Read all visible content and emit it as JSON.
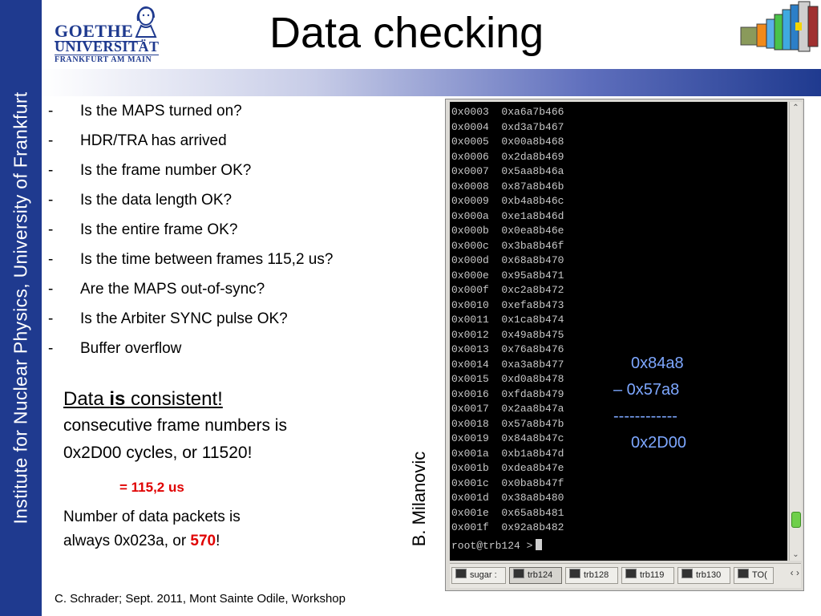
{
  "side_band": {
    "text": "Institute for  Nuclear Physics, University of Frankfurt"
  },
  "logo": {
    "line1": "GOETHE",
    "line2": "UNIVERSITÄT",
    "line3": "FRANKFURT AM MAIN"
  },
  "title": "Data checking",
  "bullets": [
    {
      "dash": "-",
      "text": "Is the MAPS turned on?"
    },
    {
      "dash": "-",
      "text": "HDR/TRA has arrived"
    },
    {
      "dash": "-",
      "text": "Is the frame number OK?"
    },
    {
      "dash": "-",
      "text": "Is the data length OK?"
    },
    {
      "dash": "-",
      "text": "Is the entire frame OK?"
    },
    {
      "dash": "-",
      "text": "Is the time between frames 115,2 us?"
    },
    {
      "dash": "-",
      "text": "Are the MAPS out-of-sync?"
    },
    {
      "dash": "-",
      "text": "Is the Arbiter SYNC pulse OK?"
    },
    {
      "dash": "-",
      "text": "Buffer overflow"
    }
  ],
  "consistency": {
    "head_pre": "Data ",
    "head_bold": "is",
    "head_post": " consistent!",
    "line1": "consecutive frame numbers is",
    "line2": "0x2D00 cycles, or 11520!",
    "equals": "= 115,2 us",
    "packets_line1": "Number of data packets is",
    "packets_line2_pre": "always 0x023a, or ",
    "packets_line2_red": "570",
    "packets_line2_post": "!"
  },
  "author": "B. Milanovic",
  "footer": "C. Schrader; Sept. 2011, Mont Sainte Odile, Workshop",
  "terminal": {
    "lines": [
      "0x0003  0xa6a7b466",
      "0x0004  0xd3a7b467",
      "0x0005  0x00a8b468",
      "0x0006  0x2da8b469",
      "0x0007  0x5aa8b46a",
      "0x0008  0x87a8b46b",
      "0x0009  0xb4a8b46c",
      "0x000a  0xe1a8b46d",
      "0x000b  0x0ea8b46e",
      "0x000c  0x3ba8b46f",
      "0x000d  0x68a8b470",
      "0x000e  0x95a8b471",
      "0x000f  0xc2a8b472",
      "0x0010  0xefa8b473",
      "0x0011  0x1ca8b474",
      "0x0012  0x49a8b475",
      "0x0013  0x76a8b476",
      "0x0014  0xa3a8b477",
      "0x0015  0xd0a8b478",
      "0x0016  0xfda8b479",
      "0x0017  0x2aa8b47a",
      "0x0018  0x57a8b47b",
      "0x0019  0x84a8b47c",
      "0x001a  0xb1a8b47d",
      "0x001b  0xdea8b47e",
      "0x001c  0x0ba8b47f",
      "0x001d  0x38a8b480",
      "0x001e  0x65a8b481",
      "0x001f  0x92a8b482"
    ],
    "prompt": "root@trb124 >",
    "calc": {
      "a": "0x84a8",
      "b": "– 0x57a8",
      "c": "------------",
      "d": "0x2D00"
    },
    "taskbar": [
      {
        "label": "sugar :",
        "active": false
      },
      {
        "label": "trb124",
        "active": true
      },
      {
        "label": "trb128",
        "active": false
      },
      {
        "label": "trb119",
        "active": false
      },
      {
        "label": "trb130",
        "active": false
      },
      {
        "label": "TO(",
        "active": false
      }
    ],
    "scroll_position": 0.95
  },
  "colors": {
    "band": "#1f3a8f",
    "highlight_red": "#e00000",
    "calc_blue": "#7da7ff"
  }
}
